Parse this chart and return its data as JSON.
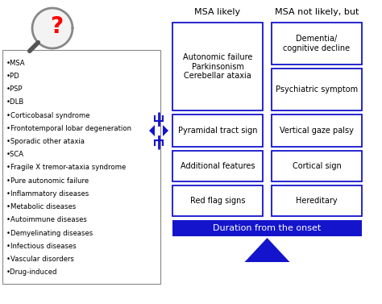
{
  "background_color": "#ffffff",
  "left_box_items": [
    "•MSA",
    "•PD",
    "•PSP",
    "•DLB",
    "•Corticobasal syndrome",
    "•Frontotemporal lobar degeneration",
    "•Sporadic other ataxia",
    "•SCA",
    "•Fragile X tremor-ataxia syndrome",
    "•Pure autonomic failure",
    "•Inflammatory diseases",
    "•Metabolic diseases",
    "•Autoimmune diseases",
    "•Demyelinating diseases",
    "•Infectious diseases",
    "•Vascular disorders",
    "•Drug-induced"
  ],
  "col_headers": [
    "MSA likely",
    "MSA not likely, but"
  ],
  "box_border_color": "#1414cc",
  "box_left_text1": "Autonomic failure\nParkinsonism\nCerebellar ataxia",
  "box_right_top_text": "Dementia/\ncognitive decline",
  "box_right_bot_text": "Psychiatric symptom",
  "box_row2_left": "Pyramidal tract sign",
  "box_row2_right": "Vertical gaze palsy",
  "box_row3_left": "Additional features",
  "box_row3_right": "Cortical sign",
  "box_row4_left": "Red flag signs",
  "box_row4_right": "Hereditary",
  "bottom_bar_text": "Duration from the onset",
  "bottom_bar_color": "#1414cc",
  "bottom_bar_text_color": "#ffffff",
  "arrow_color": "#1414cc",
  "triangle_color": "#1414cc",
  "left_box_border": "#888888"
}
